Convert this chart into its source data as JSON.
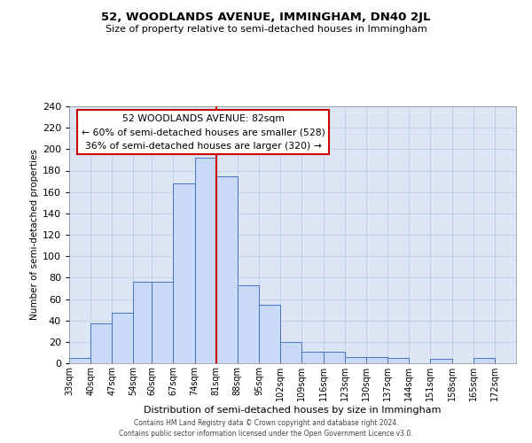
{
  "title": "52, WOODLANDS AVENUE, IMMINGHAM, DN40 2JL",
  "subtitle": "Size of property relative to semi-detached houses in Immingham",
  "xlabel": "Distribution of semi-detached houses by size in Immingham",
  "ylabel": "Number of semi-detached properties",
  "footer_line1": "Contains HM Land Registry data © Crown copyright and database right 2024.",
  "footer_line2": "Contains public sector information licensed under the Open Government Licence v3.0.",
  "bin_labels": [
    "33sqm",
    "40sqm",
    "47sqm",
    "54sqm",
    "60sqm",
    "67sqm",
    "74sqm",
    "81sqm",
    "88sqm",
    "95sqm",
    "102sqm",
    "109sqm",
    "116sqm",
    "123sqm",
    "130sqm",
    "137sqm",
    "144sqm",
    "151sqm",
    "158sqm",
    "165sqm",
    "172sqm"
  ],
  "bar_values": [
    5,
    37,
    47,
    76,
    76,
    168,
    192,
    175,
    73,
    55,
    20,
    11,
    11,
    6,
    6,
    5,
    0,
    4,
    0,
    5
  ],
  "bar_color": "#c9daf8",
  "bar_edge_color": "#4472c4",
  "property_line_x": 81,
  "property_label": "52 WOODLANDS AVENUE: 82sqm",
  "pct_smaller": 60,
  "count_smaller": 528,
  "pct_larger": 36,
  "count_larger": 320,
  "vline_color": "#cc0000",
  "ylim": [
    0,
    240
  ],
  "yticks": [
    0,
    20,
    40,
    60,
    80,
    100,
    120,
    140,
    160,
    180,
    200,
    220,
    240
  ],
  "annotation_box_color": "#ffffff",
  "annotation_box_edge": "#cc0000",
  "bin_edges": [
    33,
    40,
    47,
    54,
    60,
    67,
    74,
    81,
    88,
    95,
    102,
    109,
    116,
    123,
    130,
    137,
    144,
    151,
    158,
    165,
    172,
    179
  ],
  "bg_color": "#dce6f5",
  "grid_color": "#b8c8e0"
}
